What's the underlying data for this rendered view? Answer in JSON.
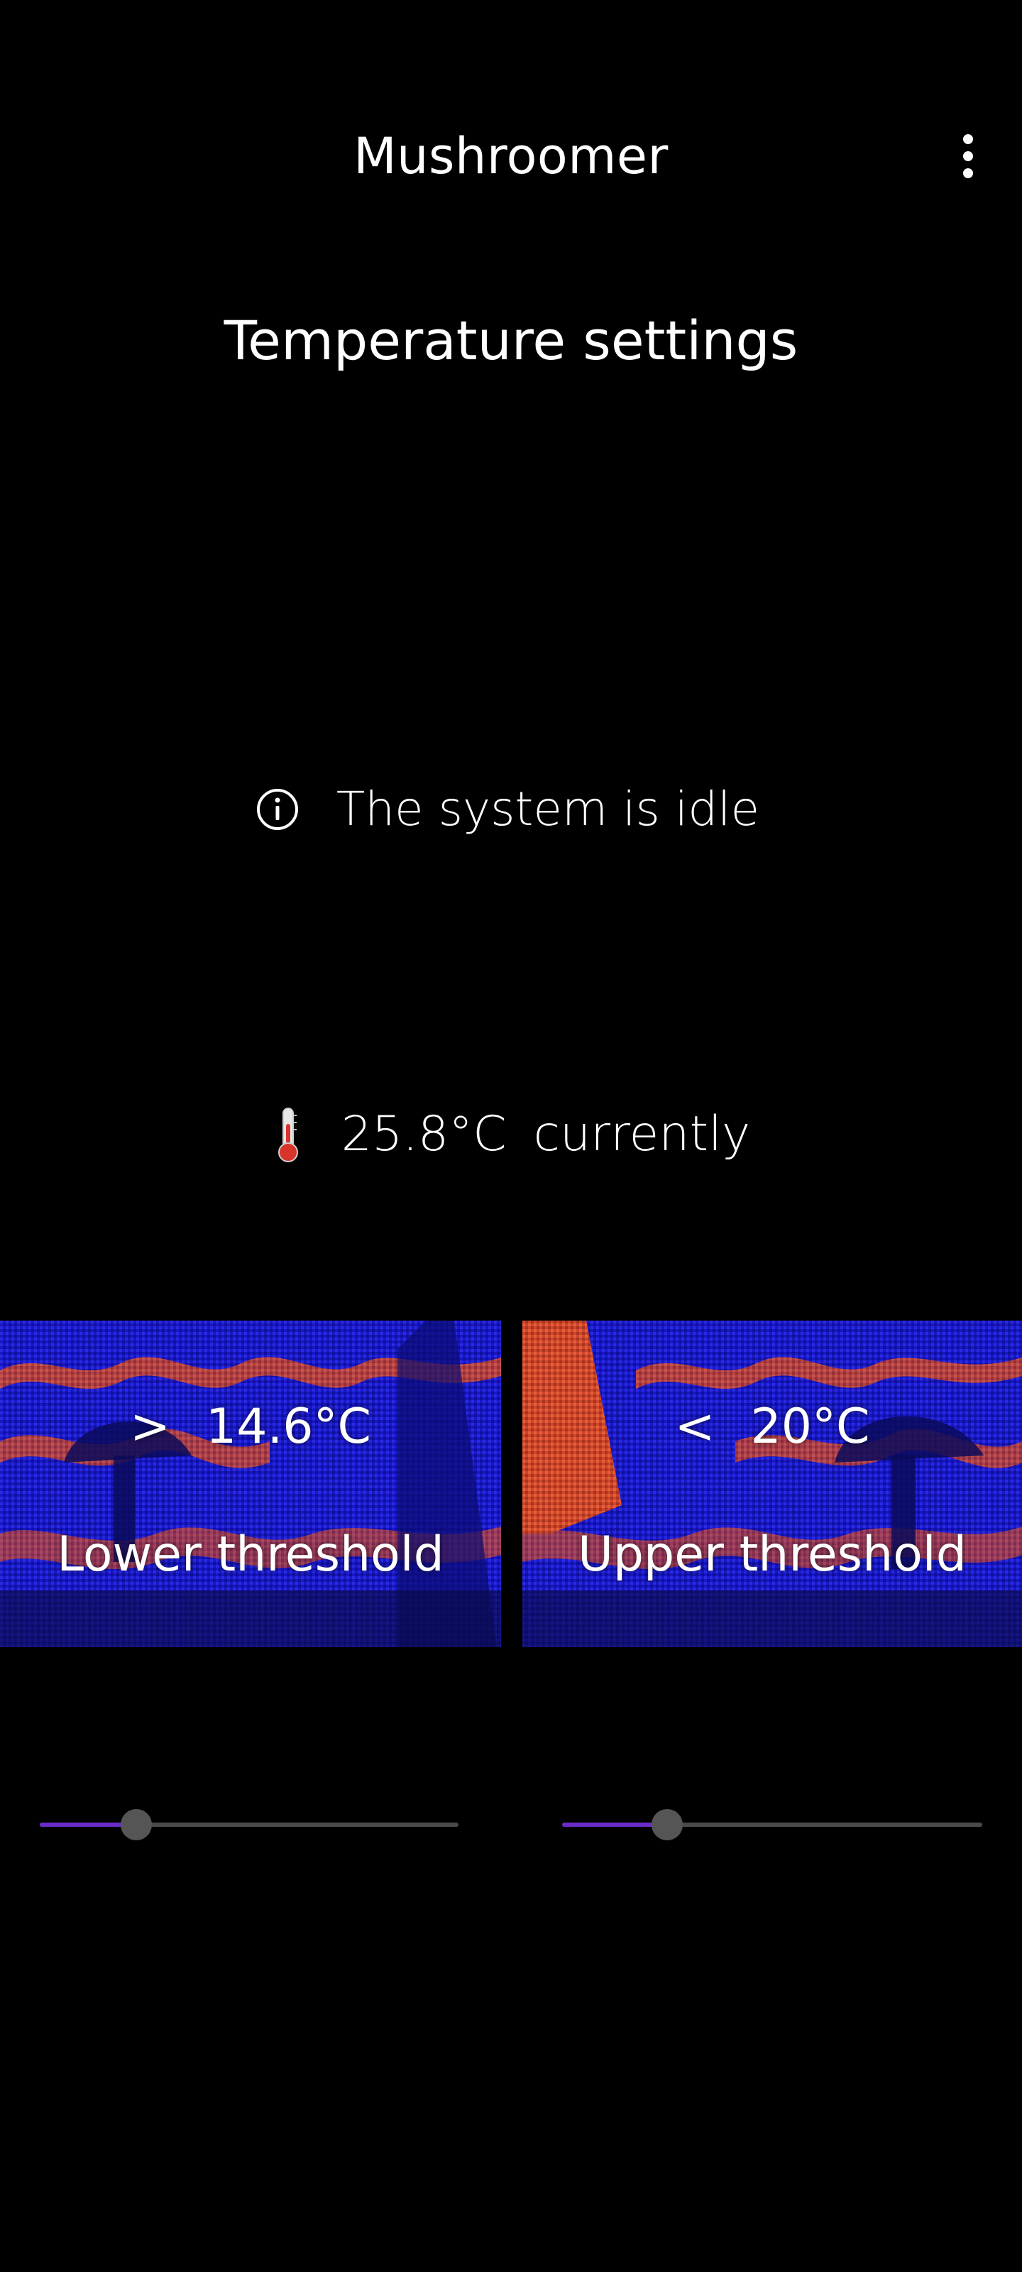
{
  "app_bar": {
    "title": "Mushroomer",
    "menu_icon": "more-vert-icon"
  },
  "section": {
    "title": "Temperature settings"
  },
  "status": {
    "icon": "info-icon",
    "text": "The system is idle"
  },
  "current": {
    "icon": "thermometer-icon",
    "value": "25.8°C",
    "suffix": "currently"
  },
  "thresholds": {
    "lower": {
      "comparator": ">",
      "value": "14.6°C",
      "label": "Lower threshold",
      "slider_fraction": 0.23
    },
    "upper": {
      "comparator": "<",
      "value": "20°C",
      "label": "Upper threshold",
      "slider_fraction": 0.25
    }
  },
  "colors": {
    "background": "#000000",
    "slider_active": "#6a2cc8",
    "slider_inactive": "#4a4a4a",
    "slider_thumb": "#555555",
    "art_blue": "#1a1ad0",
    "art_orange": "#d44a2a"
  }
}
